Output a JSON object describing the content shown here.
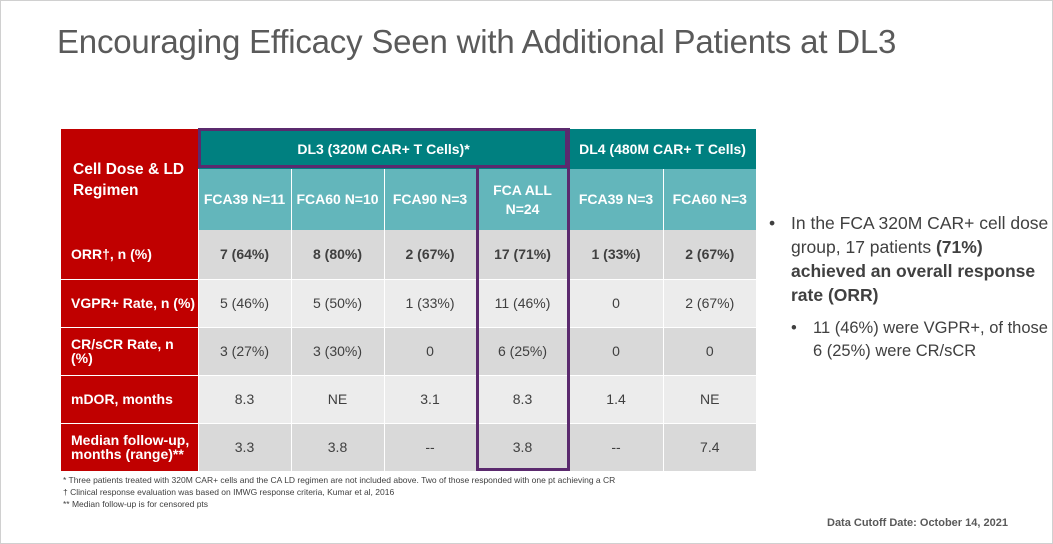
{
  "slide": {
    "title": "Encouraging Efficacy Seen with Additional Patients at DL3"
  },
  "table": {
    "corner_label": "Cell Dose & LD Regimen",
    "groups": [
      {
        "label": "DL3 (320M CAR+ T Cells)*"
      },
      {
        "label": "DL4 (480M CAR+ T Cells)"
      }
    ],
    "columns": [
      {
        "label": "FCA39 N=11"
      },
      {
        "label": "FCA60 N=10"
      },
      {
        "label": "FCA90 N=3"
      },
      {
        "label": "FCA ALL N=24"
      },
      {
        "label": "FCA39 N=3"
      },
      {
        "label": "FCA60 N=3"
      }
    ],
    "rows": [
      {
        "label": "ORR†, n (%)",
        "cells": [
          "7 (64%)",
          "8 (80%)",
          "2 (67%)",
          "17 (71%)",
          "1 (33%)",
          "2 (67%)"
        ]
      },
      {
        "label": "VGPR+ Rate, n (%)",
        "cells": [
          "5 (46%)",
          "5 (50%)",
          "1 (33%)",
          "11 (46%)",
          "0",
          "2 (67%)"
        ]
      },
      {
        "label": "CR/sCR Rate, n (%)",
        "cells": [
          "3 (27%)",
          "3 (30%)",
          "0",
          "6 (25%)",
          "0",
          "0"
        ]
      },
      {
        "label": "mDOR, months",
        "cells": [
          "8.3",
          "NE",
          "3.1",
          "8.3",
          "1.4",
          "NE"
        ]
      },
      {
        "label": "Median follow-up, months (range)**",
        "cells": [
          "3.3",
          "3.8",
          "--",
          "3.8",
          "--",
          "7.4"
        ]
      }
    ]
  },
  "bullets": {
    "main_prefix": "In the FCA 320M CAR+ cell dose group, 17 patients ",
    "main_bold": "(71%) achieved an overall response rate (ORR)",
    "sub": "11 (46%) were VGPR+, of those 6 (25%) were CR/sCR"
  },
  "footnotes": [
    "* Three patients treated with 320M CAR+ cells and the CA LD regimen are not included above. Two of those responded with one pt achieving a CR",
    "† Clinical response evaluation was based on IMWG response criteria, Kumar et al, 2016",
    "** Median follow-up is for censored pts"
  ],
  "data_cutoff": "Data Cutoff Date: October 14, 2021"
}
